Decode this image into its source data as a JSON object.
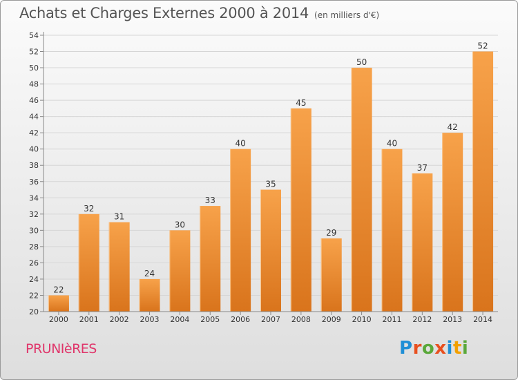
{
  "header": {
    "title": "Achats et Charges Externes 2000 à 2014",
    "unit": "(en milliers d'€)"
  },
  "commune": {
    "name": "PRUNIèRES",
    "color": "#e0356a"
  },
  "logo": {
    "text": "Proxiti",
    "letters": [
      {
        "char": "P",
        "color": "#1f8fd6"
      },
      {
        "char": "r",
        "color": "#e8501f"
      },
      {
        "char": "o",
        "color": "#5aa83a"
      },
      {
        "char": "x",
        "color": "#e8501f"
      },
      {
        "char": "i",
        "color": "#1f8fd6"
      },
      {
        "char": "t",
        "color": "#f2a000"
      },
      {
        "char": "i",
        "color": "#5aa83a"
      }
    ]
  },
  "chart_data": {
    "type": "bar",
    "title": "Achats et Charges Externes 2000 à 2014",
    "subtitle": "(en milliers d'€)",
    "categories": [
      "2000",
      "2001",
      "2002",
      "2003",
      "2004",
      "2005",
      "2006",
      "2007",
      "2008",
      "2009",
      "2010",
      "2011",
      "2012",
      "2013",
      "2014"
    ],
    "values": [
      22,
      32,
      31,
      24,
      30,
      33,
      40,
      35,
      45,
      29,
      50,
      40,
      37,
      42,
      52
    ],
    "ylim": [
      20,
      54
    ],
    "yticks": [
      20,
      22,
      24,
      26,
      28,
      30,
      32,
      34,
      36,
      38,
      40,
      42,
      44,
      46,
      48,
      50,
      52,
      54
    ],
    "grid": true,
    "bar_color_top": "#f7a24a",
    "bar_color_bottom": "#d9741c"
  }
}
